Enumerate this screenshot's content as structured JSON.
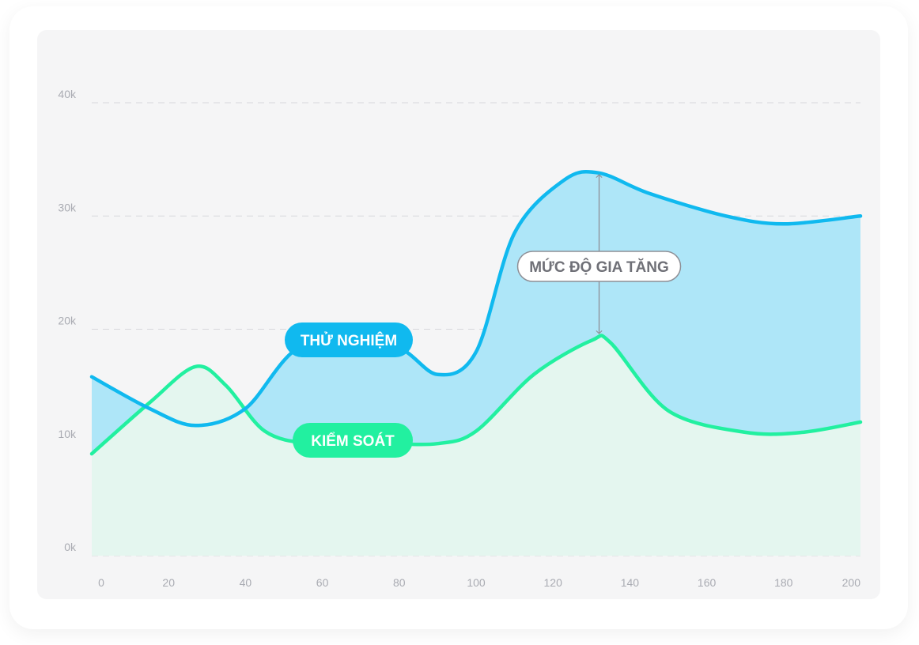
{
  "chart_data": {
    "type": "area",
    "x": [
      0,
      20,
      40,
      60,
      80,
      100,
      120,
      140,
      160,
      180,
      200
    ],
    "xlim": [
      0,
      200
    ],
    "ylim": [
      0,
      40000
    ],
    "y_ticks": [
      "0k",
      "10k",
      "20k",
      "30k",
      "40k"
    ],
    "y_tick_values": [
      0,
      10000,
      20000,
      30000,
      40000
    ],
    "x_ticks": [
      "0",
      "20",
      "40",
      "60",
      "80",
      "100",
      "120",
      "140",
      "160",
      "180",
      "200"
    ],
    "grid": true,
    "series": [
      {
        "name": "THỬ NGHIỆM",
        "color": "#10b9ef",
        "fill": "#aee6f8",
        "points": [
          [
            0,
            15800
          ],
          [
            15,
            13000
          ],
          [
            27,
            11500
          ],
          [
            40,
            13000
          ],
          [
            55,
            18600
          ],
          [
            78,
            18600
          ],
          [
            90,
            16000
          ],
          [
            100,
            18000
          ],
          [
            110,
            28500
          ],
          [
            123,
            33200
          ],
          [
            132,
            33800
          ],
          [
            145,
            32000
          ],
          [
            165,
            30000
          ],
          [
            180,
            29300
          ],
          [
            200,
            30000
          ]
        ]
      },
      {
        "name": "KIỂM SOÁT",
        "color": "#22f0a0",
        "fill": "#e4f6ef",
        "points": [
          [
            0,
            9000
          ],
          [
            15,
            13500
          ],
          [
            27,
            16700
          ],
          [
            35,
            15000
          ],
          [
            45,
            11000
          ],
          [
            57,
            9900
          ],
          [
            75,
            9900
          ],
          [
            90,
            9900
          ],
          [
            100,
            11000
          ],
          [
            115,
            16000
          ],
          [
            130,
            19000
          ],
          [
            135,
            18800
          ],
          [
            150,
            12800
          ],
          [
            170,
            10900
          ],
          [
            185,
            10900
          ],
          [
            200,
            11800
          ]
        ]
      }
    ],
    "annotations": {
      "series_a_label": "THỬ NGHIỆM",
      "series_b_label": "KIỂM SOÁT",
      "gap_label": "MỨC ĐỘ GIA TĂNG",
      "gap_x": 132
    },
    "colors": {
      "grid": "#d7d8dc",
      "tick": "#a9abb2",
      "gap_line": "#8e8f96",
      "gap_text": "#6f7077",
      "pill_text": "#ffffff"
    }
  }
}
